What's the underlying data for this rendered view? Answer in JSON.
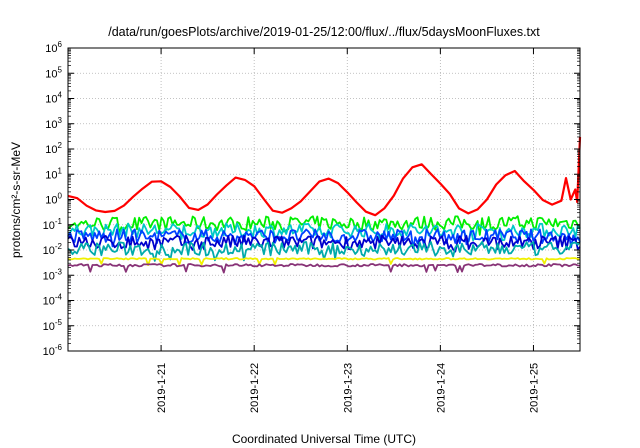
{
  "chart_data": {
    "type": "line",
    "title": "/data/run/goesPlots/archive/2019-01-25/12:00/flux/../flux/5daysMoonFluxes.txt",
    "xlabel": "Coordinated Universal Time (UTC)",
    "ylabel": "protons/cm²-s-sr-MeV",
    "y_scale": "log",
    "ylim": [
      1e-06,
      1000000.0
    ],
    "xlim": [
      0,
      5.5
    ],
    "x_axis_note": "days since 2019-01-20 00:00 UTC",
    "x_ticks": [
      {
        "x": 1,
        "label": "2019-1-21"
      },
      {
        "x": 2,
        "label": "2019-1-22"
      },
      {
        "x": 3,
        "label": "2019-1-23"
      },
      {
        "x": 4,
        "label": "2019-1-24"
      },
      {
        "x": 5,
        "label": "2019-1-25"
      }
    ],
    "y_ticks": [
      {
        "exp": "-6"
      },
      {
        "exp": "-5"
      },
      {
        "exp": "-4"
      },
      {
        "exp": "-3"
      },
      {
        "exp": "-2"
      },
      {
        "exp": "-1"
      },
      {
        "exp": "0"
      },
      {
        "exp": "1"
      },
      {
        "exp": "2"
      },
      {
        "exp": "3"
      },
      {
        "exp": "4"
      },
      {
        "exp": "5"
      },
      {
        "exp": "6"
      }
    ],
    "y_tick_base": "10",
    "grid": true,
    "series": [
      {
        "color": "#ff0000",
        "x": [
          0,
          0.1,
          0.2,
          0.3,
          0.4,
          0.5,
          0.6,
          0.7,
          0.8,
          0.9,
          1.0,
          1.1,
          1.2,
          1.3,
          1.4,
          1.5,
          1.6,
          1.7,
          1.8,
          1.9,
          2.0,
          2.1,
          2.2,
          2.3,
          2.4,
          2.5,
          2.6,
          2.7,
          2.8,
          2.9,
          3.0,
          3.1,
          3.2,
          3.3,
          3.4,
          3.5,
          3.6,
          3.7,
          3.8,
          3.9,
          4.0,
          4.1,
          4.2,
          4.3,
          4.4,
          4.5,
          4.6,
          4.7,
          4.8,
          4.9,
          5.0,
          5.1,
          5.2,
          5.3,
          5.35,
          5.4,
          5.45,
          5.47,
          5.5
        ],
        "y": [
          1.6,
          1.0,
          0.6,
          0.4,
          0.3,
          0.35,
          0.6,
          1.2,
          2.5,
          5.0,
          5.0,
          3.0,
          1.2,
          0.5,
          0.4,
          0.6,
          1.5,
          4.0,
          7.0,
          6.0,
          3.0,
          1.0,
          0.4,
          0.3,
          0.4,
          0.8,
          2.0,
          5.0,
          6.0,
          4.0,
          2.0,
          0.8,
          0.3,
          0.25,
          0.5,
          1.5,
          7.0,
          20.0,
          22.0,
          10.0,
          4.0,
          1.5,
          0.5,
          0.3,
          0.4,
          1.0,
          4.0,
          10.0,
          12.0,
          6.0,
          2.5,
          1.0,
          0.6,
          0.8,
          7.0,
          1.0,
          2.5,
          0.8,
          300.0
        ]
      },
      {
        "color": "#00ee00",
        "x": [
          0,
          5.5
        ],
        "y": [
          0.11,
          0.12
        ]
      },
      {
        "color": "#00c8c8",
        "x": [
          0,
          5.5
        ],
        "y": [
          0.06,
          0.06
        ]
      },
      {
        "color": "#0040ff",
        "x": [
          0,
          5.5
        ],
        "y": [
          0.035,
          0.035
        ]
      },
      {
        "color": "#0000cc",
        "x": [
          0,
          5.5
        ],
        "y": [
          0.02,
          0.02
        ]
      },
      {
        "color": "#00aaaa",
        "x": [
          0,
          5.5
        ],
        "y": [
          0.011,
          0.011
        ]
      },
      {
        "color": "#f0f000",
        "x": [
          0,
          5.5
        ],
        "y": [
          0.0045,
          0.0045
        ]
      },
      {
        "color": "#883377",
        "x": [
          0,
          5.5
        ],
        "y": [
          0.0025,
          0.0025
        ]
      }
    ]
  }
}
